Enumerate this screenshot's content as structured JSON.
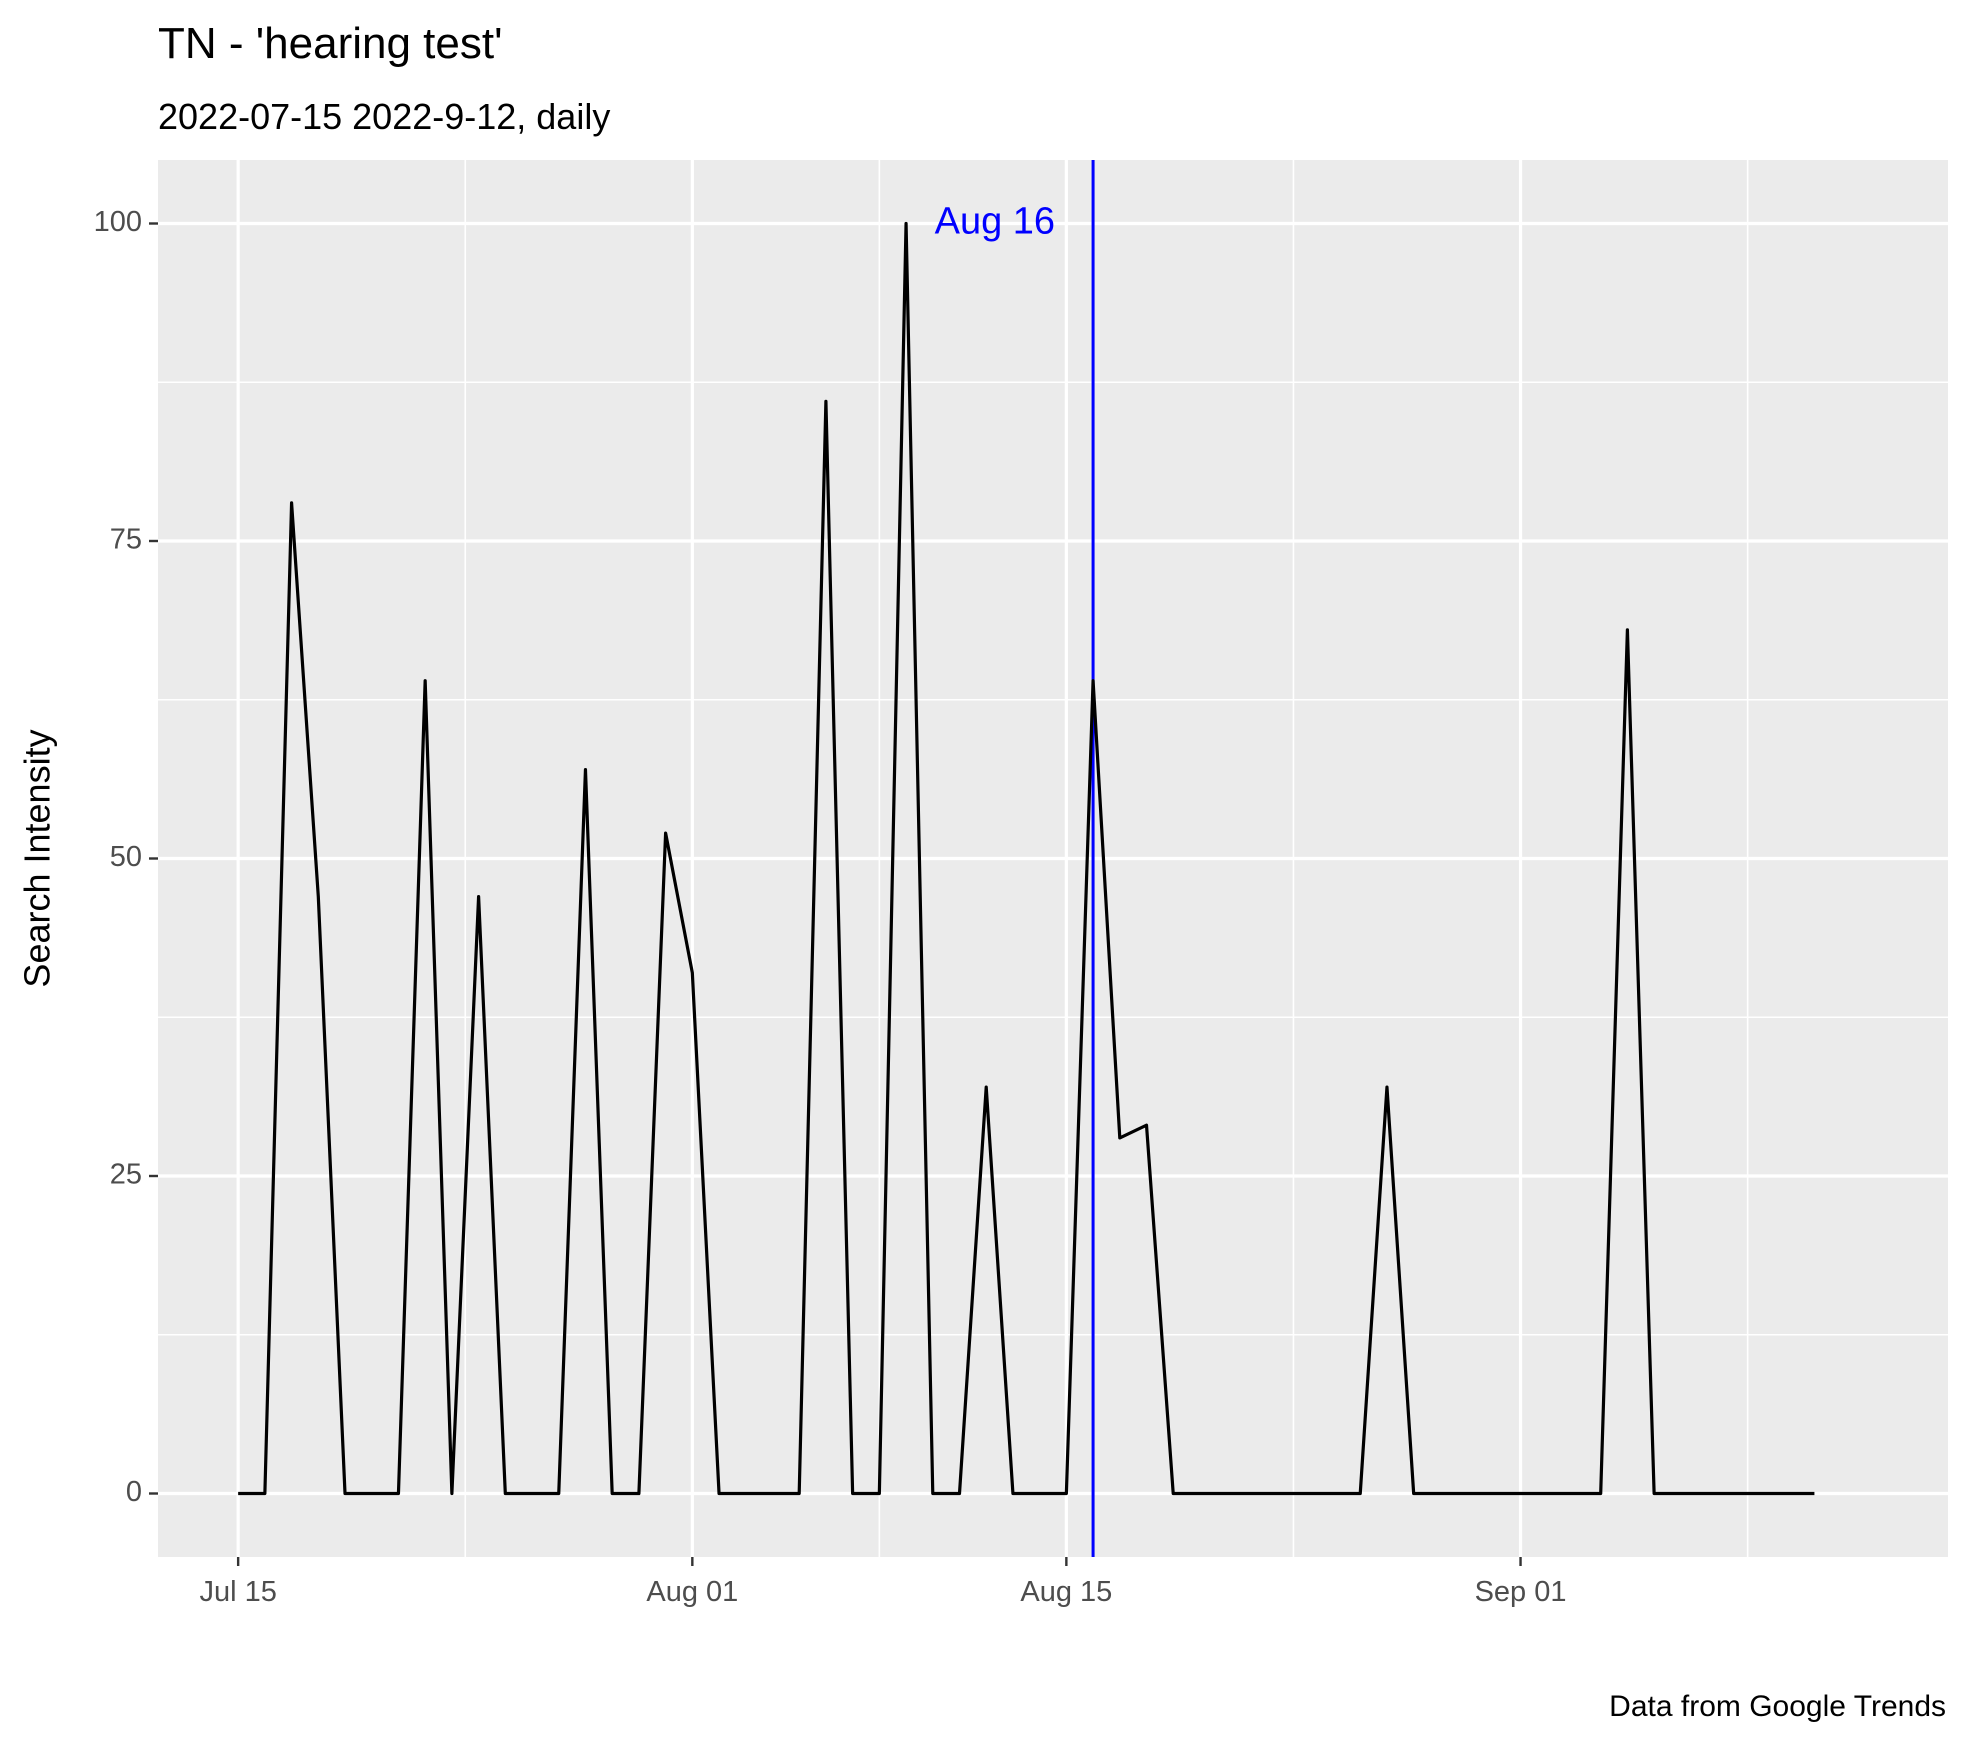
{
  "chart_data": {
    "type": "line",
    "title": "TN  - 'hearing test'",
    "subtitle": "2022-07-15 2022-9-12, daily",
    "ylabel": "Search Intensity",
    "xlabel": "",
    "caption": "Data from Google Trends",
    "x_tick_labels": [
      "Jul 15",
      "Aug 01",
      "Aug 15",
      "Sep 01"
    ],
    "x_tick_dates": [
      "2022-07-15",
      "2022-08-01",
      "2022-08-15",
      "2022-09-01"
    ],
    "y_ticks": [
      0,
      25,
      50,
      75,
      100
    ],
    "y_tick_labels": [
      "0",
      "25",
      "50",
      "75",
      "100"
    ],
    "xlim": [
      "2022-07-12",
      "2022-09-17"
    ],
    "ylim": [
      -5,
      105
    ],
    "grid": true,
    "series": [
      {
        "color": "#000000",
        "x": [
          "2022-07-15",
          "2022-07-16",
          "2022-07-17",
          "2022-07-18",
          "2022-07-19",
          "2022-07-20",
          "2022-07-21",
          "2022-07-22",
          "2022-07-23",
          "2022-07-24",
          "2022-07-25",
          "2022-07-26",
          "2022-07-27",
          "2022-07-28",
          "2022-07-29",
          "2022-07-30",
          "2022-07-31",
          "2022-08-01",
          "2022-08-02",
          "2022-08-03",
          "2022-08-04",
          "2022-08-05",
          "2022-08-06",
          "2022-08-07",
          "2022-08-08",
          "2022-08-09",
          "2022-08-10",
          "2022-08-11",
          "2022-08-12",
          "2022-08-13",
          "2022-08-14",
          "2022-08-15",
          "2022-08-16",
          "2022-08-17",
          "2022-08-18",
          "2022-08-19",
          "2022-08-20",
          "2022-08-21",
          "2022-08-22",
          "2022-08-23",
          "2022-08-24",
          "2022-08-25",
          "2022-08-26",
          "2022-08-27",
          "2022-08-28",
          "2022-08-29",
          "2022-08-30",
          "2022-08-31",
          "2022-09-01",
          "2022-09-02",
          "2022-09-03",
          "2022-09-04",
          "2022-09-05",
          "2022-09-06",
          "2022-09-07",
          "2022-09-08",
          "2022-09-09",
          "2022-09-10",
          "2022-09-11",
          "2022-09-12"
        ],
        "y": [
          0,
          0,
          78,
          47,
          0,
          0,
          0,
          64,
          0,
          47,
          0,
          0,
          0,
          57,
          0,
          0,
          52,
          41,
          0,
          0,
          0,
          0,
          86,
          0,
          0,
          100,
          0,
          0,
          32,
          0,
          0,
          0,
          64,
          28,
          29,
          0,
          0,
          0,
          0,
          0,
          0,
          0,
          0,
          32,
          0,
          0,
          0,
          0,
          0,
          0,
          0,
          0,
          68,
          0,
          0,
          0,
          0,
          0,
          0,
          0
        ]
      }
    ],
    "annotations": [
      {
        "type": "vline",
        "x": "2022-08-16",
        "color": "#0000ff",
        "label": "Aug 16",
        "label_y": 100
      }
    ]
  }
}
